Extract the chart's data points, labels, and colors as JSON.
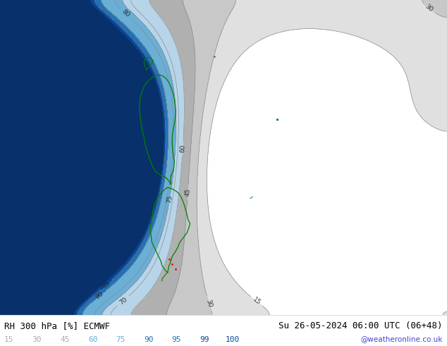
{
  "title_left": "RH 300 hPa [%] ECMWF",
  "title_right": "Su 26-05-2024 06:00 UTC (06+48)",
  "credit": "@weatheronline.co.uk",
  "colorbar_levels": [
    15,
    30,
    45,
    60,
    75,
    90,
    95,
    99,
    100
  ],
  "colorbar_label_colors": [
    "#aaaaaa",
    "#aaaaaa",
    "#aaaaaa",
    "#6baed6",
    "#6baed6",
    "#2171b5",
    "#2171b5",
    "#084594",
    "#084594"
  ],
  "fill_levels": [
    0,
    15,
    30,
    45,
    60,
    75,
    90,
    95,
    99,
    101
  ],
  "fill_colors": [
    "#ffffff",
    "#e0e0e0",
    "#c8c8c8",
    "#b0b0b0",
    "#b8d4e8",
    "#6baed6",
    "#2171b5",
    "#084594",
    "#08306b"
  ],
  "contour_levels": [
    15,
    30,
    45,
    60,
    70,
    75,
    80,
    90,
    95
  ],
  "contour_color": "#888888",
  "contour_label_color": "#222222",
  "bg_color": "#ffffff",
  "figsize": [
    6.34,
    4.9
  ],
  "dpi": 100,
  "title_fontsize": 9,
  "credit_color": "#4444cc",
  "credit_fontsize": 7.5,
  "label_fontsize": 8
}
